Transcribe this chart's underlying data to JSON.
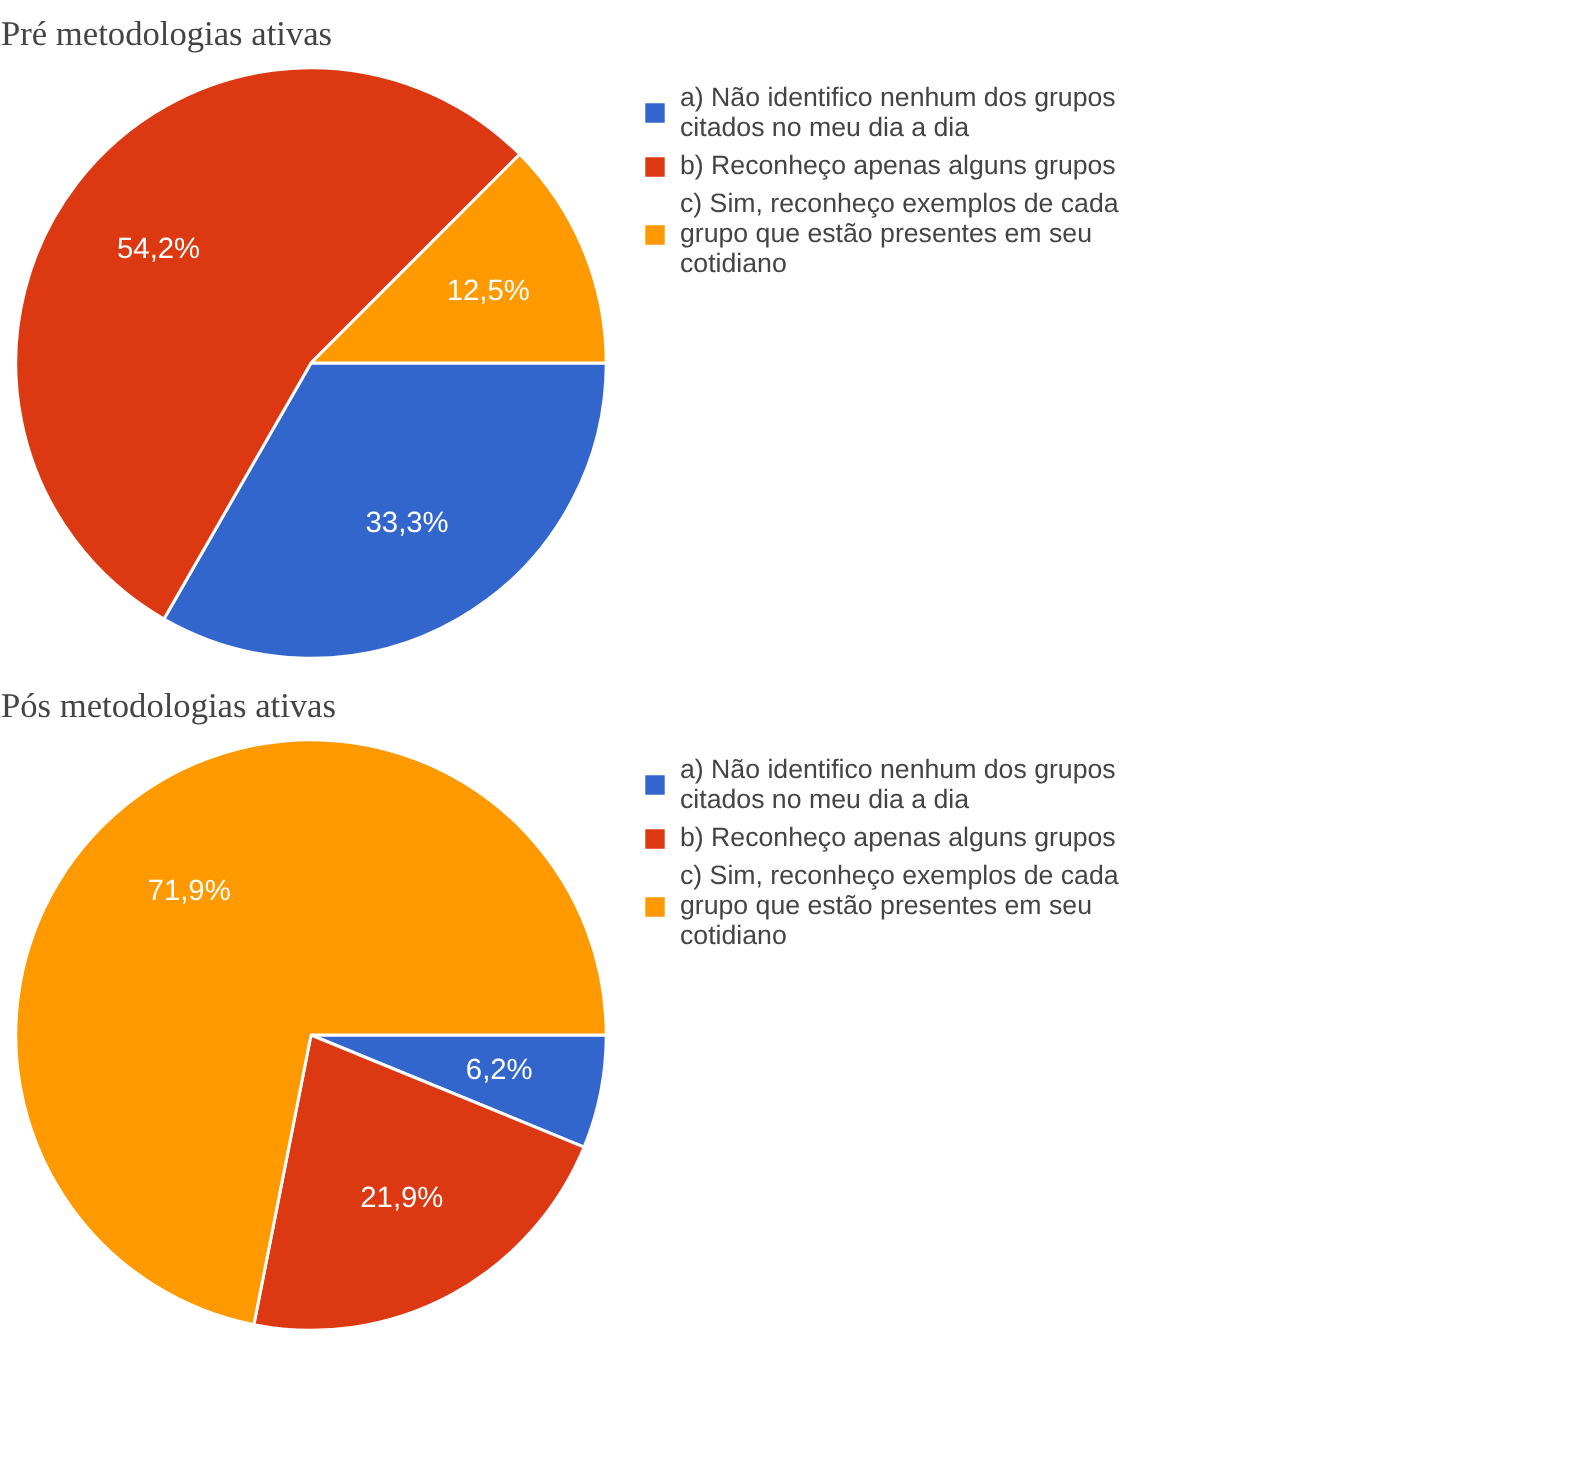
{
  "chart_data": [
    {
      "type": "pie",
      "title": "Pré metodologias ativas",
      "categories": [
        "a) Não identifico nenhum dos grupos\ncitados no meu dia a dia",
        "b) Reconheço apenas alguns grupos",
        "c) Sim, reconheço exemplos de cada\ngrupo que estão presentes em seu\ncotidiano"
      ],
      "values": [
        33.3,
        54.2,
        12.5
      ],
      "colors": [
        "#3366cc",
        "#dc3912",
        "#ff9900"
      ],
      "value_labels": [
        "33,3%",
        "54,2%",
        "12,5%"
      ],
      "legend": "right"
    },
    {
      "type": "pie",
      "title": "Pós metodologias ativas",
      "categories": [
        "a) Não identifico nenhum dos grupos\ncitados no meu dia a dia",
        "b) Reconheço apenas alguns grupos",
        "c) Sim, reconheço exemplos de cada\ngrupo que estão presentes em seu\ncotidiano"
      ],
      "values": [
        6.2,
        21.9,
        71.9
      ],
      "colors": [
        "#3366cc",
        "#dc3912",
        "#ff9900"
      ],
      "value_labels": [
        "6,2%",
        "21,9%",
        "71,9%"
      ],
      "legend": "right"
    }
  ]
}
